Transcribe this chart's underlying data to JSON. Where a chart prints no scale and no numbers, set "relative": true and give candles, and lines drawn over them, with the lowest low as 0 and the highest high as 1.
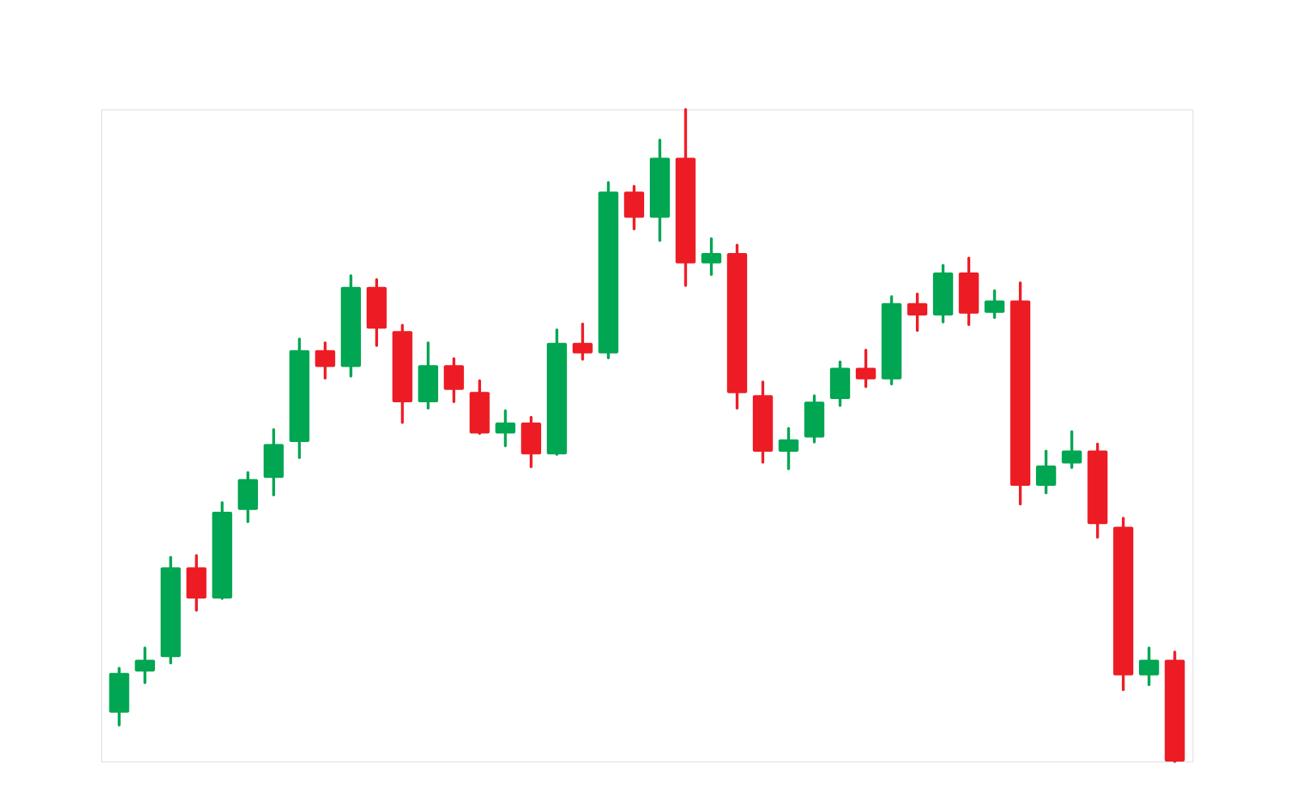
{
  "chart_data": {
    "type": "candlestick",
    "relative": true,
    "categories": [
      null,
      null,
      null,
      null,
      null,
      null,
      null,
      null,
      null,
      null,
      null,
      null,
      null,
      null,
      null,
      null,
      null,
      null,
      null,
      null,
      null,
      null,
      null,
      null,
      null,
      null,
      null,
      null,
      null,
      null,
      null,
      null,
      null,
      null,
      null,
      null,
      null,
      null,
      null,
      null,
      null,
      null
    ],
    "ohlc": [
      [
        0.075,
        0.143,
        0.056,
        0.136
      ],
      [
        0.138,
        0.174,
        0.121,
        0.156
      ],
      [
        0.16,
        0.313,
        0.151,
        0.298
      ],
      [
        0.298,
        0.316,
        0.232,
        0.25
      ],
      [
        0.25,
        0.397,
        0.25,
        0.383
      ],
      [
        0.386,
        0.443,
        0.368,
        0.433
      ],
      [
        0.435,
        0.509,
        0.409,
        0.487
      ],
      [
        0.49,
        0.648,
        0.466,
        0.631
      ],
      [
        0.631,
        0.642,
        0.588,
        0.605
      ],
      [
        0.605,
        0.745,
        0.591,
        0.728
      ],
      [
        0.728,
        0.739,
        0.638,
        0.664
      ],
      [
        0.66,
        0.669,
        0.52,
        0.551
      ],
      [
        0.551,
        0.642,
        0.542,
        0.608
      ],
      [
        0.608,
        0.618,
        0.552,
        0.57
      ],
      [
        0.567,
        0.584,
        0.503,
        0.503
      ],
      [
        0.503,
        0.538,
        0.484,
        0.52
      ],
      [
        0.52,
        0.528,
        0.452,
        0.471
      ],
      [
        0.471,
        0.662,
        0.471,
        0.642
      ],
      [
        0.642,
        0.671,
        0.617,
        0.626
      ],
      [
        0.626,
        0.888,
        0.619,
        0.874
      ],
      [
        0.874,
        0.882,
        0.817,
        0.834
      ],
      [
        0.834,
        0.953,
        0.799,
        0.926
      ],
      [
        0.926,
        1,
        0.73,
        0.764
      ],
      [
        0.764,
        0.802,
        0.747,
        0.78
      ],
      [
        0.78,
        0.792,
        0.542,
        0.565
      ],
      [
        0.562,
        0.582,
        0.459,
        0.475
      ],
      [
        0.475,
        0.511,
        0.449,
        0.494
      ],
      [
        0.497,
        0.561,
        0.49,
        0.552
      ],
      [
        0.556,
        0.613,
        0.546,
        0.604
      ],
      [
        0.604,
        0.631,
        0.575,
        0.586
      ],
      [
        0.586,
        0.713,
        0.579,
        0.703
      ],
      [
        0.703,
        0.717,
        0.661,
        0.684
      ],
      [
        0.684,
        0.761,
        0.674,
        0.75
      ],
      [
        0.75,
        0.772,
        0.67,
        0.687
      ],
      [
        0.688,
        0.722,
        0.681,
        0.707
      ],
      [
        0.707,
        0.734,
        0.395,
        0.423
      ],
      [
        0.423,
        0.476,
        0.412,
        0.454
      ],
      [
        0.457,
        0.506,
        0.451,
        0.477
      ],
      [
        0.477,
        0.487,
        0.344,
        0.364
      ],
      [
        0.36,
        0.373,
        0.11,
        0.132
      ],
      [
        0.132,
        0.174,
        0.118,
        0.156
      ],
      [
        0.156,
        0.168,
        0,
        0
      ]
    ],
    "colors": [
      "#00a651",
      "#00a651",
      "#00a651",
      "#ed1c24",
      "#00a651",
      "#00a651",
      "#00a651",
      "#00a651",
      "#ed1c24",
      "#00a651",
      "#ed1c24",
      "#ed1c24",
      "#00a651",
      "#ed1c24",
      "#ed1c24",
      "#00a651",
      "#ed1c24",
      "#00a651",
      "#ed1c24",
      "#00a651",
      "#ed1c24",
      "#00a651",
      "#ed1c24",
      "#00a651",
      "#ed1c24",
      "#ed1c24",
      "#00a651",
      "#00a651",
      "#00a651",
      "#ed1c24",
      "#00a651",
      "#ed1c24",
      "#00a651",
      "#ed1c24",
      "#00a651",
      "#ed1c24",
      "#00a651",
      "#00a651",
      "#ed1c24",
      "#ed1c24",
      "#00a651",
      "#ed1c24"
    ]
  }
}
